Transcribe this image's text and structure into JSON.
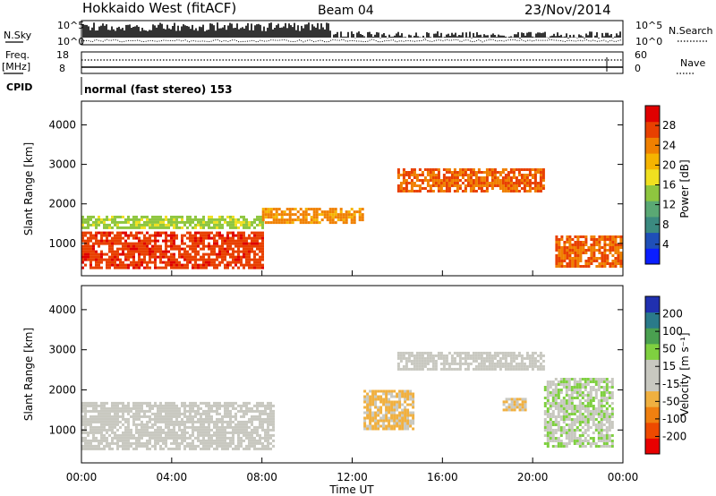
{
  "header": {
    "station": "Hokkaido West (fitACF)",
    "beam": "Beam 04",
    "date": "23/Nov/2014"
  },
  "top_panels": {
    "nsky_label": "N.Sky",
    "nsearch_label": "N.Search",
    "noise_ticks": [
      "10^5",
      "10^0"
    ],
    "freq_label": "Freq.",
    "freq_unit": "[MHz]",
    "freq_ticks": [
      "18",
      "8"
    ],
    "nave_label": "Nave",
    "nave_ticks": [
      "60",
      "0"
    ],
    "cpid_label": "CPID",
    "cpid_value": "normal (fast stereo) 153"
  },
  "colors": {
    "power_scale": [
      "#0a1eff",
      "#1f4fb8",
      "#3b8a80",
      "#5aa874",
      "#8ec63f",
      "#f0e020",
      "#f5b400",
      "#f08000",
      "#e84000",
      "#e00000"
    ],
    "velocity_scale": [
      "#e80000",
      "#ee4a00",
      "#f08010",
      "#f0b040",
      "#c8c8c0",
      "#c8c8c0",
      "#7fd040",
      "#4aa050",
      "#2a7a8a",
      "#2030b0"
    ]
  },
  "chart_data": [
    {
      "type": "heatmap",
      "title": "",
      "ylabel": "Slant Range [km]",
      "ylim": [
        180,
        4600
      ],
      "yticks": [
        "1000",
        "2000",
        "3000",
        "4000"
      ],
      "colorbar_label": "Power [dB]",
      "colorbar_ticks": [
        "4",
        "8",
        "12",
        "16",
        "20",
        "24",
        "28"
      ],
      "colorbar_range": [
        0,
        30
      ],
      "features": [
        {
          "start": "00:00",
          "end": "08:00",
          "range_from": 350,
          "range_to": 1300,
          "value": 26
        },
        {
          "start": "00:00",
          "end": "08:00",
          "range_from": 1400,
          "range_to": 1700,
          "value": 14
        },
        {
          "start": "08:00",
          "end": "12:30",
          "range_from": 1500,
          "range_to": 1900,
          "value": 22
        },
        {
          "start": "14:00",
          "end": "20:30",
          "range_from": 2300,
          "range_to": 2900,
          "value": 24
        },
        {
          "start": "21:00",
          "end": "00:00",
          "range_from": 400,
          "range_to": 1200,
          "value": 24
        }
      ]
    },
    {
      "type": "heatmap",
      "title": "",
      "xlabel": "Time UT",
      "ylabel": "Slant Range [km]",
      "ylim": [
        180,
        4600
      ],
      "xticks": [
        "00:00",
        "04:00",
        "08:00",
        "12:00",
        "16:00",
        "20:00",
        "00:00"
      ],
      "yticks": [
        "1000",
        "2000",
        "3000",
        "4000"
      ],
      "colorbar_label": "Velocity [m s⁻¹]",
      "colorbar_ticks": [
        "200",
        "100",
        "50",
        "15",
        "-15",
        "-50",
        "-100",
        "-200"
      ],
      "colorbar_range": [
        -250,
        250
      ],
      "features": [
        {
          "start": "00:00",
          "end": "08:30",
          "range_from": 500,
          "range_to": 1700,
          "value": 0
        },
        {
          "start": "12:30",
          "end": "14:40",
          "range_from": 1000,
          "range_to": 2000,
          "value": -60
        },
        {
          "start": "18:40",
          "end": "19:40",
          "range_from": 1500,
          "range_to": 1800,
          "value": -50
        },
        {
          "start": "14:00",
          "end": "20:30",
          "range_from": 2500,
          "range_to": 2950,
          "value": 0
        },
        {
          "start": "20:30",
          "end": "23:30",
          "range_from": 600,
          "range_to": 2300,
          "value": 40
        }
      ]
    }
  ]
}
